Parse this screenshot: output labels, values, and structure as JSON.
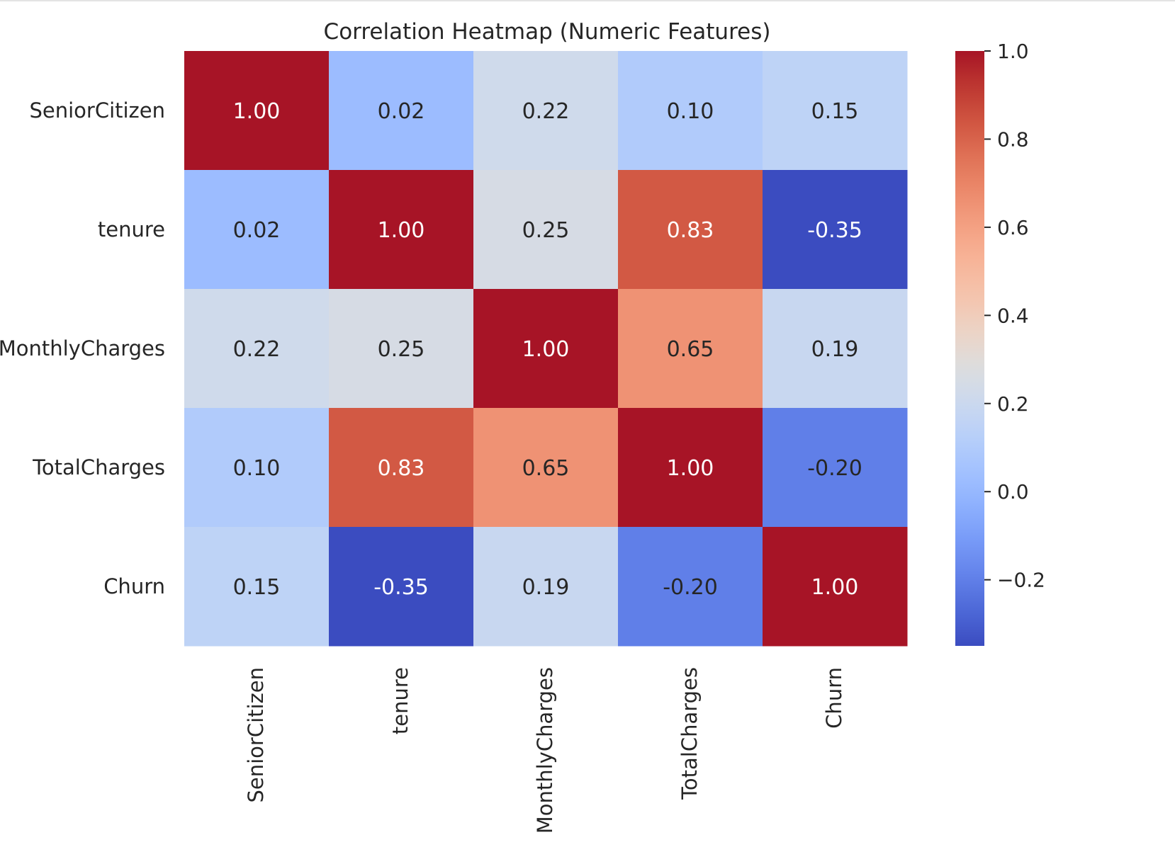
{
  "chart_data": {
    "type": "heatmap",
    "title": "Correlation Heatmap (Numeric Features)",
    "rows": [
      "SeniorCitizen",
      "tenure",
      "MonthlyCharges",
      "TotalCharges",
      "Churn"
    ],
    "columns": [
      "SeniorCitizen",
      "tenure",
      "MonthlyCharges",
      "TotalCharges",
      "Churn"
    ],
    "values": [
      [
        1.0,
        0.02,
        0.22,
        0.1,
        0.15
      ],
      [
        0.02,
        1.0,
        0.25,
        0.83,
        -0.35
      ],
      [
        0.22,
        0.25,
        1.0,
        0.65,
        0.19
      ],
      [
        0.1,
        0.83,
        0.65,
        1.0,
        -0.2
      ],
      [
        0.15,
        -0.35,
        0.19,
        -0.2,
        1.0
      ]
    ],
    "value_format": "0.00",
    "colormap": "coolwarm",
    "colorbar": {
      "range": [
        -0.35,
        1.0
      ],
      "ticks": [
        1.0,
        0.8,
        0.6,
        0.4,
        0.2,
        0.0,
        -0.2
      ],
      "tick_labels": [
        "1.0",
        "0.8",
        "0.6",
        "0.4",
        "0.2",
        "0.0",
        "−0.2"
      ]
    },
    "xlabel": "",
    "ylabel": ""
  }
}
